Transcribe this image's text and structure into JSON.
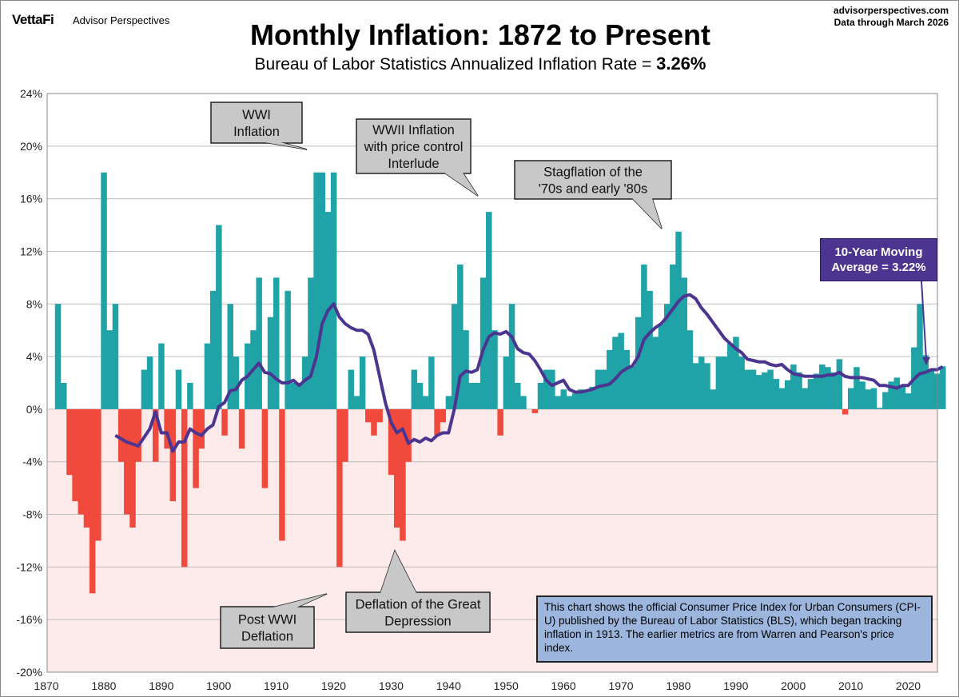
{
  "header": {
    "logo": "VettaFi",
    "brand": "Advisor Perspectives",
    "site": "advisorperspectives.com",
    "data_through": "Data through  March 2026"
  },
  "chart_data": {
    "type": "area",
    "title": "Monthly Inflation: 1872 to Present",
    "subtitle_prefix": "Bureau of Labor Statistics Annualized Inflation Rate = ",
    "subtitle_value": "3.26%",
    "xlim": [
      1870,
      2028
    ],
    "ylim": [
      -20,
      24
    ],
    "x_ticks": [
      "1870",
      "1880",
      "1890",
      "1900",
      "1910",
      "1920",
      "1930",
      "1940",
      "1950",
      "1960",
      "1970",
      "1980",
      "1990",
      "2000",
      "2010",
      "2020"
    ],
    "y_ticks": [
      "24%",
      "20%",
      "16%",
      "12%",
      "8%",
      "4%",
      "0%",
      "-4%",
      "-8%",
      "-12%",
      "-16%",
      "-20%"
    ],
    "grid": true,
    "colors": {
      "positive": "#20a3a6",
      "negative": "#f04a3c",
      "moving_average": "#4b3591",
      "negative_background": "#fdeaea"
    },
    "series": [
      {
        "type": "area",
        "values": [
          [
            1872,
            8
          ],
          [
            1873,
            2
          ],
          [
            1874,
            -5
          ],
          [
            1875,
            -7
          ],
          [
            1876,
            -8
          ],
          [
            1877,
            -9
          ],
          [
            1878,
            -14
          ],
          [
            1879,
            -10
          ],
          [
            1880,
            18
          ],
          [
            1881,
            6
          ],
          [
            1882,
            8
          ],
          [
            1883,
            -4
          ],
          [
            1884,
            -8
          ],
          [
            1885,
            -9
          ],
          [
            1886,
            -4
          ],
          [
            1887,
            3
          ],
          [
            1888,
            4
          ],
          [
            1889,
            -4
          ],
          [
            1890,
            5
          ],
          [
            1891,
            -3
          ],
          [
            1892,
            -7
          ],
          [
            1893,
            3
          ],
          [
            1894,
            -12
          ],
          [
            1895,
            2
          ],
          [
            1896,
            -6
          ],
          [
            1897,
            -3
          ],
          [
            1898,
            5
          ],
          [
            1899,
            9
          ],
          [
            1900,
            14
          ],
          [
            1901,
            -2
          ],
          [
            1902,
            8
          ],
          [
            1903,
            4
          ],
          [
            1904,
            -3
          ],
          [
            1905,
            5
          ],
          [
            1906,
            6
          ],
          [
            1907,
            10
          ],
          [
            1908,
            -6
          ],
          [
            1909,
            7
          ],
          [
            1910,
            10
          ],
          [
            1911,
            -10
          ],
          [
            1912,
            9
          ],
          [
            1913,
            2
          ],
          [
            1914,
            2
          ],
          [
            1915,
            4
          ],
          [
            1916,
            10
          ],
          [
            1917,
            18
          ],
          [
            1918,
            18
          ],
          [
            1919,
            15
          ],
          [
            1920,
            18
          ],
          [
            1921,
            -12
          ],
          [
            1922,
            -4
          ],
          [
            1923,
            3
          ],
          [
            1924,
            1
          ],
          [
            1925,
            4
          ],
          [
            1926,
            -1
          ],
          [
            1927,
            -2
          ],
          [
            1928,
            -1
          ],
          [
            1929,
            0
          ],
          [
            1930,
            -5
          ],
          [
            1931,
            -9
          ],
          [
            1932,
            -10
          ],
          [
            1933,
            -4
          ],
          [
            1934,
            3
          ],
          [
            1935,
            2
          ],
          [
            1936,
            1
          ],
          [
            1937,
            4
          ],
          [
            1938,
            -2
          ],
          [
            1939,
            -1
          ],
          [
            1940,
            1
          ],
          [
            1941,
            8
          ],
          [
            1942,
            11
          ],
          [
            1943,
            6
          ],
          [
            1944,
            2
          ],
          [
            1945,
            2
          ],
          [
            1946,
            10
          ],
          [
            1947,
            15
          ],
          [
            1948,
            6
          ],
          [
            1949,
            -2
          ],
          [
            1950,
            4
          ],
          [
            1951,
            8
          ],
          [
            1952,
            2
          ],
          [
            1953,
            1
          ],
          [
            1954,
            0
          ],
          [
            1955,
            -0.3
          ],
          [
            1956,
            2
          ],
          [
            1957,
            3
          ],
          [
            1958,
            3
          ],
          [
            1959,
            1
          ],
          [
            1960,
            1.5
          ],
          [
            1961,
            1
          ],
          [
            1962,
            1.2
          ],
          [
            1963,
            1.5
          ],
          [
            1964,
            1.3
          ],
          [
            1965,
            1.7
          ],
          [
            1966,
            3
          ],
          [
            1967,
            3
          ],
          [
            1968,
            4.5
          ],
          [
            1969,
            5.5
          ],
          [
            1970,
            5.8
          ],
          [
            1971,
            4.5
          ],
          [
            1972,
            3.3
          ],
          [
            1973,
            7
          ],
          [
            1974,
            11
          ],
          [
            1975,
            9
          ],
          [
            1976,
            5.5
          ],
          [
            1977,
            6.5
          ],
          [
            1978,
            8
          ],
          [
            1979,
            11
          ],
          [
            1980,
            13.5
          ],
          [
            1981,
            10
          ],
          [
            1982,
            6
          ],
          [
            1983,
            3.5
          ],
          [
            1984,
            4
          ],
          [
            1985,
            3.5
          ],
          [
            1986,
            1.5
          ],
          [
            1987,
            4
          ],
          [
            1988,
            4
          ],
          [
            1989,
            5
          ],
          [
            1990,
            5.5
          ],
          [
            1991,
            4
          ],
          [
            1992,
            3
          ],
          [
            1993,
            3
          ],
          [
            1994,
            2.6
          ],
          [
            1995,
            2.8
          ],
          [
            1996,
            3
          ],
          [
            1997,
            2.3
          ],
          [
            1998,
            1.6
          ],
          [
            1999,
            2.2
          ],
          [
            2000,
            3.4
          ],
          [
            2001,
            2.8
          ],
          [
            2002,
            1.6
          ],
          [
            2003,
            2.3
          ],
          [
            2004,
            2.7
          ],
          [
            2005,
            3.4
          ],
          [
            2006,
            3.2
          ],
          [
            2007,
            2.8
          ],
          [
            2008,
            3.8
          ],
          [
            2009,
            -0.4
          ],
          [
            2010,
            1.6
          ],
          [
            2011,
            3.2
          ],
          [
            2012,
            2.1
          ],
          [
            2013,
            1.5
          ],
          [
            2014,
            1.6
          ],
          [
            2015,
            0.1
          ],
          [
            2016,
            1.3
          ],
          [
            2017,
            2.1
          ],
          [
            2018,
            2.4
          ],
          [
            2019,
            1.8
          ],
          [
            2020,
            1.2
          ],
          [
            2021,
            4.7
          ],
          [
            2022,
            8
          ],
          [
            2023,
            4.1
          ],
          [
            2024,
            2.9
          ],
          [
            2025,
            2.7
          ],
          [
            2026,
            3.26
          ]
        ]
      },
      {
        "type": "line",
        "values": [
          [
            1882,
            -2
          ],
          [
            1884,
            -2.5
          ],
          [
            1886,
            -2.8
          ],
          [
            1888,
            -1.5
          ],
          [
            1889,
            -0.2
          ],
          [
            1890,
            -1.8
          ],
          [
            1891,
            -1.8
          ],
          [
            1892,
            -3.2
          ],
          [
            1893,
            -2.5
          ],
          [
            1894,
            -2.5
          ],
          [
            1895,
            -1.5
          ],
          [
            1896,
            -1.8
          ],
          [
            1897,
            -2
          ],
          [
            1898,
            -1.5
          ],
          [
            1899,
            -1.2
          ],
          [
            1900,
            0.2
          ],
          [
            1901,
            0.5
          ],
          [
            1902,
            1.4
          ],
          [
            1903,
            1.5
          ],
          [
            1904,
            2.2
          ],
          [
            1905,
            2.5
          ],
          [
            1906,
            3
          ],
          [
            1907,
            3.5
          ],
          [
            1908,
            2.8
          ],
          [
            1909,
            2.7
          ],
          [
            1910,
            2.3
          ],
          [
            1911,
            2
          ],
          [
            1912,
            2
          ],
          [
            1913,
            2.2
          ],
          [
            1914,
            1.8
          ],
          [
            1915,
            2.2
          ],
          [
            1916,
            2.5
          ],
          [
            1917,
            4
          ],
          [
            1918,
            6.5
          ],
          [
            1919,
            7.5
          ],
          [
            1920,
            8
          ],
          [
            1921,
            7
          ],
          [
            1922,
            6.5
          ],
          [
            1923,
            6.2
          ],
          [
            1924,
            6
          ],
          [
            1925,
            6
          ],
          [
            1926,
            5.7
          ],
          [
            1927,
            4.5
          ],
          [
            1928,
            2.5
          ],
          [
            1929,
            0.5
          ],
          [
            1930,
            -1
          ],
          [
            1931,
            -1.8
          ],
          [
            1932,
            -1.5
          ],
          [
            1933,
            -2.6
          ],
          [
            1934,
            -2.3
          ],
          [
            1935,
            -2.5
          ],
          [
            1936,
            -2.2
          ],
          [
            1937,
            -2.4
          ],
          [
            1938,
            -2
          ],
          [
            1939,
            -1.8
          ],
          [
            1940,
            -1.8
          ],
          [
            1941,
            0
          ],
          [
            1942,
            2.5
          ],
          [
            1943,
            2.9
          ],
          [
            1944,
            2.8
          ],
          [
            1945,
            3
          ],
          [
            1946,
            4.5
          ],
          [
            1947,
            5.5
          ],
          [
            1948,
            5.8
          ],
          [
            1949,
            5.7
          ],
          [
            1950,
            5.9
          ],
          [
            1951,
            5.5
          ],
          [
            1952,
            4.6
          ],
          [
            1953,
            4.3
          ],
          [
            1954,
            4.2
          ],
          [
            1955,
            3.7
          ],
          [
            1956,
            3
          ],
          [
            1957,
            2.2
          ],
          [
            1958,
            1.8
          ],
          [
            1959,
            2
          ],
          [
            1960,
            2.2
          ],
          [
            1961,
            1.5
          ],
          [
            1962,
            1.3
          ],
          [
            1963,
            1.3
          ],
          [
            1964,
            1.4
          ],
          [
            1965,
            1.5
          ],
          [
            1966,
            1.7
          ],
          [
            1967,
            1.8
          ],
          [
            1968,
            1.9
          ],
          [
            1969,
            2.3
          ],
          [
            1970,
            2.8
          ],
          [
            1971,
            3.1
          ],
          [
            1972,
            3.3
          ],
          [
            1973,
            4
          ],
          [
            1974,
            5.3
          ],
          [
            1975,
            5.8
          ],
          [
            1976,
            6.2
          ],
          [
            1977,
            6.5
          ],
          [
            1978,
            7
          ],
          [
            1979,
            7.6
          ],
          [
            1980,
            8.2
          ],
          [
            1981,
            8.6
          ],
          [
            1982,
            8.7
          ],
          [
            1983,
            8.4
          ],
          [
            1984,
            7.7
          ],
          [
            1985,
            7.2
          ],
          [
            1986,
            6.6
          ],
          [
            1987,
            6
          ],
          [
            1988,
            5.4
          ],
          [
            1989,
            5
          ],
          [
            1990,
            4.6
          ],
          [
            1991,
            4.3
          ],
          [
            1992,
            3.8
          ],
          [
            1993,
            3.7
          ],
          [
            1994,
            3.6
          ],
          [
            1995,
            3.6
          ],
          [
            1996,
            3.4
          ],
          [
            1997,
            3.3
          ],
          [
            1998,
            3.4
          ],
          [
            1999,
            3
          ],
          [
            2000,
            2.7
          ],
          [
            2001,
            2.6
          ],
          [
            2002,
            2.5
          ],
          [
            2003,
            2.5
          ],
          [
            2004,
            2.5
          ],
          [
            2005,
            2.5
          ],
          [
            2006,
            2.6
          ],
          [
            2007,
            2.6
          ],
          [
            2008,
            2.8
          ],
          [
            2009,
            2.5
          ],
          [
            2010,
            2.4
          ],
          [
            2011,
            2.4
          ],
          [
            2012,
            2.4
          ],
          [
            2013,
            2.3
          ],
          [
            2014,
            2.2
          ],
          [
            2015,
            1.8
          ],
          [
            2016,
            1.8
          ],
          [
            2017,
            1.7
          ],
          [
            2018,
            1.6
          ],
          [
            2019,
            1.8
          ],
          [
            2020,
            1.8
          ],
          [
            2021,
            2.3
          ],
          [
            2022,
            2.7
          ],
          [
            2023,
            2.8
          ],
          [
            2024,
            3
          ],
          [
            2025,
            3
          ],
          [
            2026,
            3.22
          ]
        ]
      }
    ],
    "annotations": {
      "wwi": [
        "WWI",
        "Inflation"
      ],
      "wwii": [
        "WWII Inflation",
        "with price control",
        "Interlude"
      ],
      "stagflation": [
        "Stagflation of the",
        "'70s and early '80s"
      ],
      "post_wwi": [
        "Post WWI",
        "Deflation"
      ],
      "depression": [
        "Deflation of the Great",
        "Depression"
      ],
      "moving_average": [
        "10-Year Moving",
        "Average = 3.22%"
      ],
      "note": "This chart shows the official Consumer Price Index for Urban Consumers (CPI-U) published by the Bureau of Labor Statistics (BLS), which began tracking inflation in 1913.  The earlier metrics are from Warren and Pearson's  price index."
    }
  }
}
